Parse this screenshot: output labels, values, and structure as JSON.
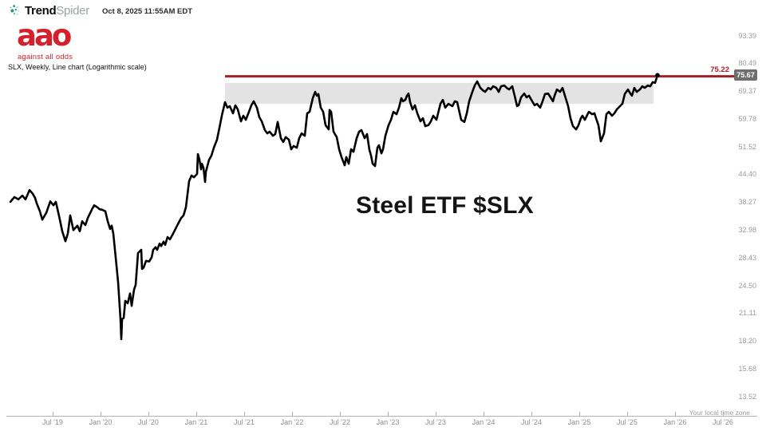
{
  "header": {
    "brand_bold": "Trend",
    "brand_light": "Spider",
    "timestamp": "Oct 8, 2025 11:55AM EDT"
  },
  "watermark": {
    "logo_text": "aao",
    "tagline": "against all odds"
  },
  "chart_meta": "SLX, Weekly, Line chart (Logarithmic scale)",
  "timezone_note": "Your local time zone",
  "colors": {
    "accent_red": "#b11f26",
    "resistance_red": "#a02228",
    "zone_gray": "#e3e3e3",
    "badge_gray": "#6e6e6e",
    "logo_red": "#d41f2c",
    "brand_teal": "#2e8f7e",
    "axis_text": "#9b9b9b",
    "line_black": "#000000"
  },
  "chart_data": {
    "type": "line",
    "symbol": "SLX",
    "timeframe": "Weekly",
    "scale": "logarithmic",
    "title": "Steel ETF $SLX",
    "legend": "none",
    "grid": "off",
    "y_axis_labels": [
      "93.39",
      "80.49",
      "69.37",
      "59.78",
      "51.52",
      "44.40",
      "38.27",
      "32.98",
      "28.43",
      "24.50",
      "21.11",
      "18.20",
      "15.68",
      "13.52"
    ],
    "x_axis_ticks": [
      {
        "label": "Jul '19",
        "t": 2019.5
      },
      {
        "label": "Jan '20",
        "t": 2020.0
      },
      {
        "label": "Jul '20",
        "t": 2020.5
      },
      {
        "label": "Jan '21",
        "t": 2021.0
      },
      {
        "label": "Jul '21",
        "t": 2021.5
      },
      {
        "label": "Jan '22",
        "t": 2022.0
      },
      {
        "label": "Jul '22",
        "t": 2022.5
      },
      {
        "label": "Jan '23",
        "t": 2023.0
      },
      {
        "label": "Jul '23",
        "t": 2023.5
      },
      {
        "label": "Jan '24",
        "t": 2024.0
      },
      {
        "label": "Jul '24",
        "t": 2024.5
      },
      {
        "label": "Jan '25",
        "t": 2025.0
      },
      {
        "label": "Jul '25",
        "t": 2025.5
      },
      {
        "label": "Jan '26",
        "t": 2026.0
      },
      {
        "label": "Jul '26",
        "t": 2026.5
      }
    ],
    "resistance_line": {
      "price": 75.22,
      "label": "75.22",
      "t_start": 2021.3,
      "t_end": 2026.62
    },
    "last_price": {
      "price": 75.67,
      "label": "75.67"
    },
    "zone": {
      "price_top": 72.6,
      "price_bottom": 64.9,
      "t_start": 2021.3,
      "t_end": 2025.775
    },
    "series": [
      {
        "name": "SLX weekly close",
        "points": [
          [
            2019.058,
            38.4
          ],
          [
            2019.1,
            39.4
          ],
          [
            2019.142,
            38.9
          ],
          [
            2019.183,
            39.7
          ],
          [
            2019.217,
            38.9
          ],
          [
            2019.258,
            40.9
          ],
          [
            2019.292,
            40.1
          ],
          [
            2019.317,
            39.2
          ],
          [
            2019.333,
            38.1
          ],
          [
            2019.367,
            36.5
          ],
          [
            2019.392,
            34.9
          ],
          [
            2019.433,
            36.2
          ],
          [
            2019.475,
            38.5
          ],
          [
            2019.508,
            37.7
          ],
          [
            2019.533,
            38.4
          ],
          [
            2019.575,
            34.9
          ],
          [
            2019.6,
            32.8
          ],
          [
            2019.633,
            31.1
          ],
          [
            2019.658,
            32.4
          ],
          [
            2019.683,
            35.7
          ],
          [
            2019.717,
            33.0
          ],
          [
            2019.758,
            33.8
          ],
          [
            2019.783,
            32.8
          ],
          [
            2019.808,
            34.6
          ],
          [
            2019.842,
            33.9
          ],
          [
            2019.867,
            35.2
          ],
          [
            2019.908,
            36.8
          ],
          [
            2019.933,
            37.7
          ],
          [
            2019.967,
            37.3
          ],
          [
            2019.992,
            36.9
          ],
          [
            2020.017,
            36.8
          ],
          [
            2020.05,
            36.5
          ],
          [
            2020.075,
            34.6
          ],
          [
            2020.1,
            33.2
          ],
          [
            2020.117,
            33.8
          ],
          [
            2020.133,
            32.4
          ],
          [
            2020.158,
            28.5
          ],
          [
            2020.183,
            25.0
          ],
          [
            2020.208,
            20.5
          ],
          [
            2020.217,
            18.4
          ],
          [
            2020.225,
            20.5
          ],
          [
            2020.242,
            20.6
          ],
          [
            2020.258,
            22.6
          ],
          [
            2020.283,
            22.3
          ],
          [
            2020.308,
            23.5
          ],
          [
            2020.325,
            22.0
          ],
          [
            2020.35,
            24.0
          ],
          [
            2020.367,
            24.6
          ],
          [
            2020.392,
            29.2
          ],
          [
            2020.425,
            29.7
          ],
          [
            2020.433,
            26.8
          ],
          [
            2020.45,
            27.0
          ],
          [
            2020.475,
            28.0
          ],
          [
            2020.508,
            27.9
          ],
          [
            2020.533,
            28.5
          ],
          [
            2020.55,
            29.7
          ],
          [
            2020.575,
            30.1
          ],
          [
            2020.592,
            29.7
          ],
          [
            2020.617,
            30.7
          ],
          [
            2020.633,
            30.3
          ],
          [
            2020.658,
            31.0
          ],
          [
            2020.675,
            30.5
          ],
          [
            2020.7,
            31.8
          ],
          [
            2020.725,
            31.4
          ],
          [
            2020.758,
            32.4
          ],
          [
            2020.8,
            33.8
          ],
          [
            2020.842,
            35.2
          ],
          [
            2020.867,
            35.7
          ],
          [
            2020.892,
            37.3
          ],
          [
            2020.925,
            42.9
          ],
          [
            2020.95,
            44.2
          ],
          [
            2020.975,
            43.8
          ],
          [
            2021.008,
            44.6
          ],
          [
            2021.017,
            49.6
          ],
          [
            2021.033,
            48.1
          ],
          [
            2021.05,
            45.7
          ],
          [
            2021.058,
            47.1
          ],
          [
            2021.075,
            46.1
          ],
          [
            2021.092,
            42.7
          ],
          [
            2021.1,
            45.1
          ],
          [
            2021.133,
            48.1
          ],
          [
            2021.158,
            49.2
          ],
          [
            2021.183,
            51.3
          ],
          [
            2021.217,
            53.6
          ],
          [
            2021.242,
            57.1
          ],
          [
            2021.267,
            60.9
          ],
          [
            2021.3,
            65.5
          ],
          [
            2021.325,
            63.6
          ],
          [
            2021.35,
            64.1
          ],
          [
            2021.383,
            61.7
          ],
          [
            2021.408,
            64.4
          ],
          [
            2021.433,
            63.0
          ],
          [
            2021.467,
            59.1
          ],
          [
            2021.492,
            60.9
          ],
          [
            2021.517,
            59.6
          ],
          [
            2021.55,
            62.2
          ],
          [
            2021.575,
            64.4
          ],
          [
            2021.6,
            65.8
          ],
          [
            2021.633,
            63.6
          ],
          [
            2021.658,
            60.4
          ],
          [
            2021.683,
            59.1
          ],
          [
            2021.717,
            56.4
          ],
          [
            2021.742,
            55.4
          ],
          [
            2021.767,
            55.9
          ],
          [
            2021.8,
            54.7
          ],
          [
            2021.825,
            55.2
          ],
          [
            2021.85,
            58.9
          ],
          [
            2021.883,
            54.0
          ],
          [
            2021.908,
            52.9
          ],
          [
            2021.933,
            54.3
          ],
          [
            2021.967,
            53.6
          ],
          [
            2021.992,
            50.9
          ],
          [
            2022.017,
            51.8
          ],
          [
            2022.05,
            51.3
          ],
          [
            2022.075,
            54.0
          ],
          [
            2022.1,
            55.4
          ],
          [
            2022.133,
            54.7
          ],
          [
            2022.158,
            61.7
          ],
          [
            2022.183,
            62.2
          ],
          [
            2022.217,
            66.9
          ],
          [
            2022.242,
            69.2
          ],
          [
            2022.258,
            67.8
          ],
          [
            2022.275,
            68.4
          ],
          [
            2022.3,
            63.6
          ],
          [
            2022.325,
            62.2
          ],
          [
            2022.35,
            57.9
          ],
          [
            2022.383,
            56.6
          ],
          [
            2022.392,
            62.8
          ],
          [
            2022.408,
            62.2
          ],
          [
            2022.433,
            55.9
          ],
          [
            2022.467,
            54.3
          ],
          [
            2022.492,
            50.9
          ],
          [
            2022.517,
            48.8
          ],
          [
            2022.55,
            46.7
          ],
          [
            2022.567,
            48.8
          ],
          [
            2022.592,
            47.1
          ],
          [
            2022.617,
            50.9
          ],
          [
            2022.642,
            50.2
          ],
          [
            2022.675,
            54.0
          ],
          [
            2022.7,
            55.9
          ],
          [
            2022.725,
            56.4
          ],
          [
            2022.758,
            54.0
          ],
          [
            2022.783,
            55.2
          ],
          [
            2022.808,
            50.7
          ],
          [
            2022.825,
            49.2
          ],
          [
            2022.842,
            47.1
          ],
          [
            2022.867,
            46.5
          ],
          [
            2022.892,
            51.3
          ],
          [
            2022.908,
            52.0
          ],
          [
            2022.933,
            49.8
          ],
          [
            2022.95,
            50.9
          ],
          [
            2022.975,
            54.7
          ],
          [
            2023.008,
            57.9
          ],
          [
            2023.033,
            59.6
          ],
          [
            2023.058,
            62.2
          ],
          [
            2023.092,
            61.4
          ],
          [
            2023.117,
            63.6
          ],
          [
            2023.142,
            66.9
          ],
          [
            2023.158,
            65.8
          ],
          [
            2023.183,
            66.3
          ],
          [
            2023.2,
            67.8
          ],
          [
            2023.217,
            68.6
          ],
          [
            2023.233,
            65.5
          ],
          [
            2023.258,
            63.0
          ],
          [
            2023.283,
            64.4
          ],
          [
            2023.308,
            61.7
          ],
          [
            2023.342,
            59.1
          ],
          [
            2023.367,
            60.1
          ],
          [
            2023.392,
            57.6
          ],
          [
            2023.425,
            57.9
          ],
          [
            2023.45,
            59.1
          ],
          [
            2023.475,
            60.9
          ],
          [
            2023.508,
            59.6
          ],
          [
            2023.55,
            64.9
          ],
          [
            2023.575,
            66.3
          ],
          [
            2023.6,
            63.6
          ],
          [
            2023.633,
            64.9
          ],
          [
            2023.675,
            64.1
          ],
          [
            2023.7,
            65.8
          ],
          [
            2023.725,
            65.5
          ],
          [
            2023.767,
            59.6
          ],
          [
            2023.8,
            58.9
          ],
          [
            2023.825,
            61.7
          ],
          [
            2023.85,
            65.8
          ],
          [
            2023.883,
            69.2
          ],
          [
            2023.908,
            71.6
          ],
          [
            2023.933,
            73.2
          ],
          [
            2023.967,
            70.7
          ],
          [
            2023.992,
            69.8
          ],
          [
            2024.017,
            69.2
          ],
          [
            2024.05,
            70.7
          ],
          [
            2024.075,
            70.1
          ],
          [
            2024.1,
            71.3
          ],
          [
            2024.133,
            70.7
          ],
          [
            2024.158,
            69.2
          ],
          [
            2024.183,
            71.3
          ],
          [
            2024.217,
            71.6
          ],
          [
            2024.242,
            70.7
          ],
          [
            2024.267,
            70.1
          ],
          [
            2024.3,
            71.3
          ],
          [
            2024.325,
            67.8
          ],
          [
            2024.35,
            64.1
          ],
          [
            2024.367,
            64.4
          ],
          [
            2024.392,
            67.2
          ],
          [
            2024.425,
            68.6
          ],
          [
            2024.45,
            67.2
          ],
          [
            2024.475,
            67.8
          ],
          [
            2024.508,
            65.8
          ],
          [
            2024.533,
            64.4
          ],
          [
            2024.558,
            64.9
          ],
          [
            2024.592,
            63.6
          ],
          [
            2024.617,
            65.8
          ],
          [
            2024.642,
            68.4
          ],
          [
            2024.675,
            68.6
          ],
          [
            2024.7,
            67.2
          ],
          [
            2024.725,
            65.8
          ],
          [
            2024.742,
            67.8
          ],
          [
            2024.767,
            70.1
          ],
          [
            2024.8,
            69.2
          ],
          [
            2024.825,
            70.7
          ],
          [
            2024.85,
            67.8
          ],
          [
            2024.883,
            64.1
          ],
          [
            2024.908,
            60.1
          ],
          [
            2024.933,
            57.6
          ],
          [
            2024.967,
            56.6
          ],
          [
            2024.992,
            57.9
          ],
          [
            2025.017,
            60.1
          ],
          [
            2025.033,
            60.9
          ],
          [
            2025.058,
            59.6
          ],
          [
            2025.092,
            61.7
          ],
          [
            2025.1,
            62.2
          ],
          [
            2025.133,
            61.4
          ],
          [
            2025.158,
            61.7
          ],
          [
            2025.175,
            60.1
          ],
          [
            2025.2,
            57.9
          ],
          [
            2025.225,
            53.1
          ],
          [
            2025.258,
            55.4
          ],
          [
            2025.283,
            61.4
          ],
          [
            2025.308,
            62.2
          ],
          [
            2025.342,
            60.9
          ],
          [
            2025.367,
            61.7
          ],
          [
            2025.392,
            63.0
          ],
          [
            2025.425,
            64.1
          ],
          [
            2025.45,
            64.9
          ],
          [
            2025.475,
            68.4
          ],
          [
            2025.508,
            70.1
          ],
          [
            2025.533,
            68.6
          ],
          [
            2025.55,
            67.8
          ],
          [
            2025.575,
            70.7
          ],
          [
            2025.6,
            69.2
          ],
          [
            2025.633,
            70.1
          ],
          [
            2025.658,
            71.3
          ],
          [
            2025.683,
            70.7
          ],
          [
            2025.717,
            71.6
          ],
          [
            2025.742,
            71.3
          ],
          [
            2025.767,
            72.9
          ],
          [
            2025.792,
            72.6
          ],
          [
            2025.817,
            75.67
          ]
        ]
      }
    ]
  }
}
